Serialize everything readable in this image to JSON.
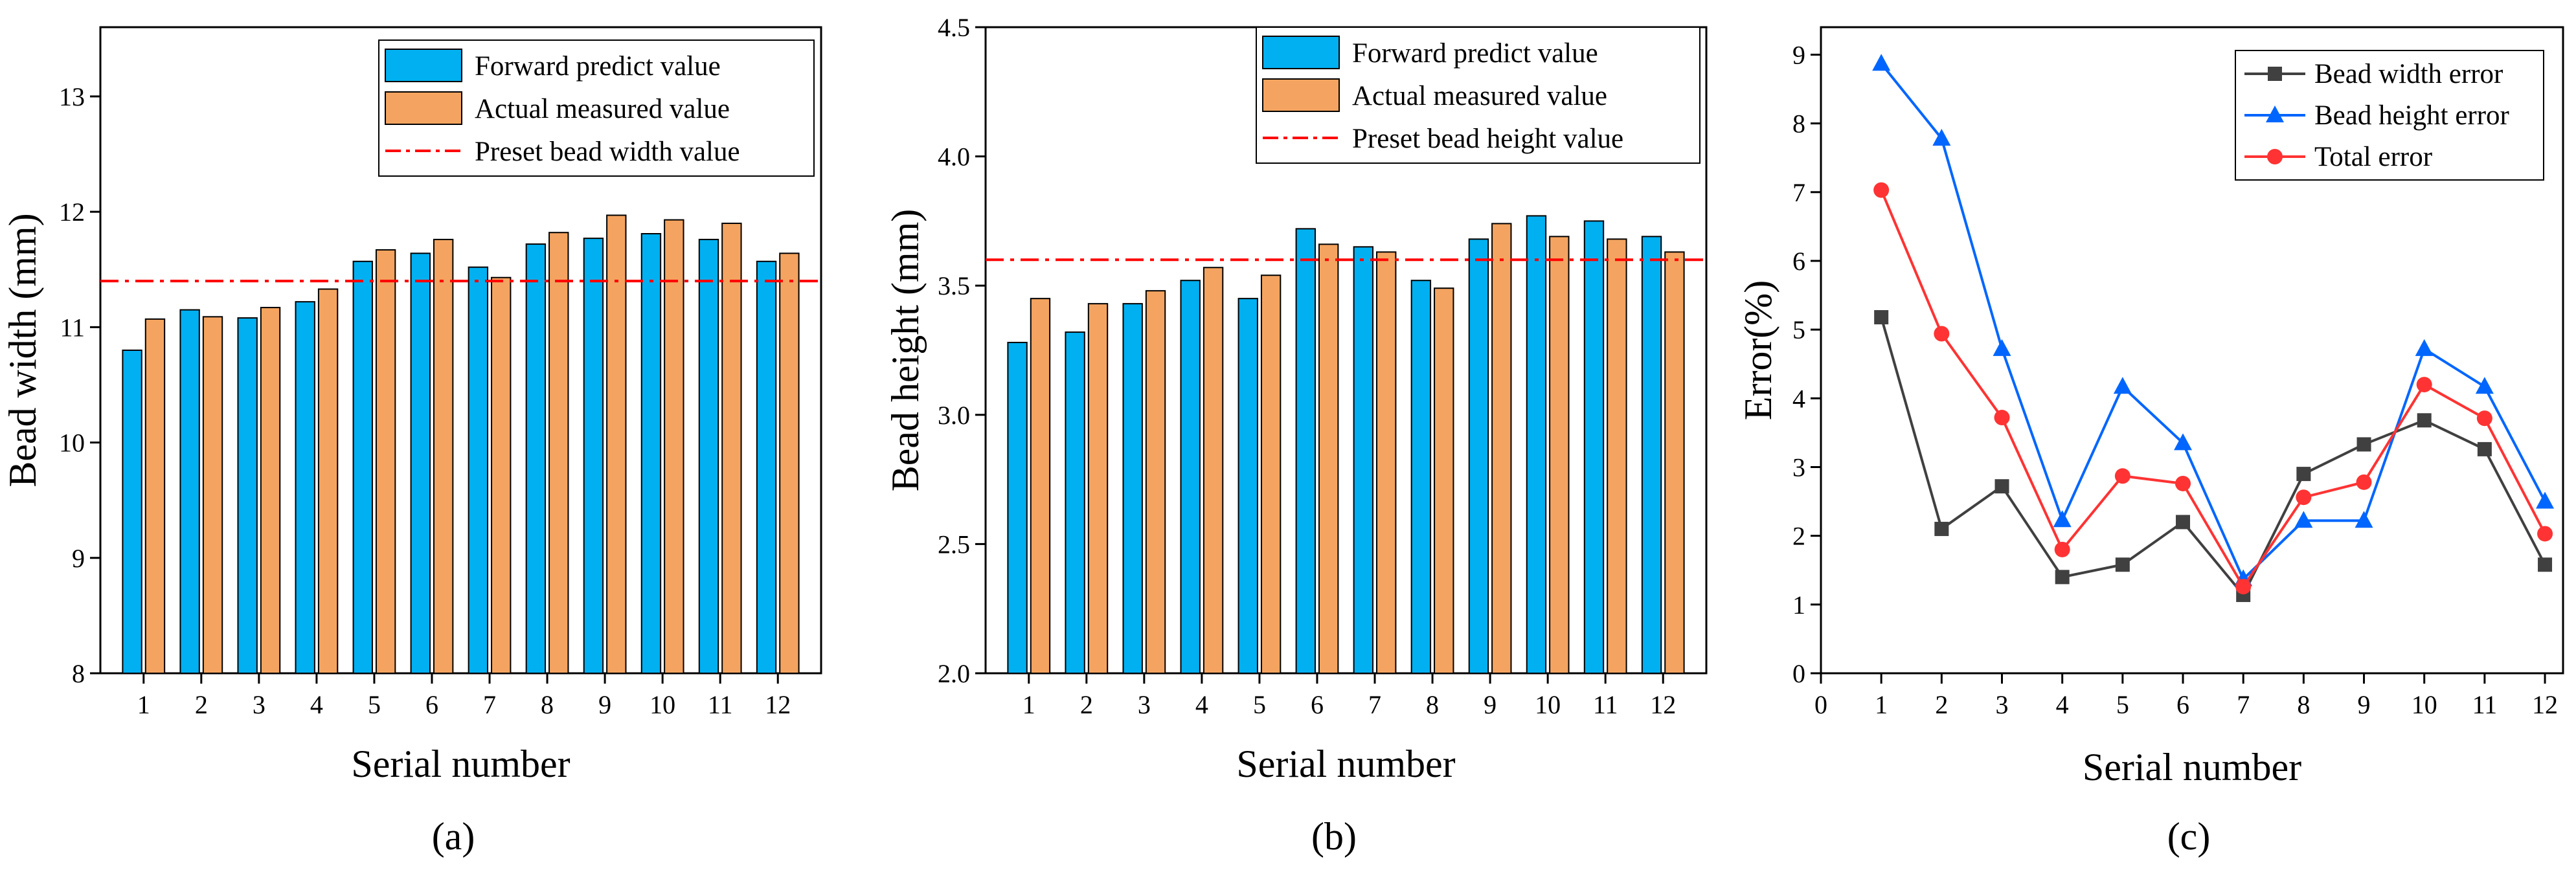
{
  "chart_data": [
    {
      "type": "bar",
      "panel_label": "(a)",
      "categories": [
        "1",
        "2",
        "3",
        "4",
        "5",
        "6",
        "7",
        "8",
        "9",
        "10",
        "11",
        "12"
      ],
      "series": [
        {
          "name": "Forward predict value",
          "color": "#00B0F0",
          "values": [
            10.8,
            11.15,
            11.08,
            11.22,
            11.57,
            11.64,
            11.52,
            11.72,
            11.77,
            11.81,
            11.76,
            11.57
          ]
        },
        {
          "name": "Actual measured value",
          "color": "#F4A460",
          "values": [
            11.07,
            11.09,
            11.17,
            11.33,
            11.67,
            11.76,
            11.43,
            11.82,
            11.97,
            11.93,
            11.9,
            11.64
          ]
        }
      ],
      "reference_line": {
        "name": "Preset bead width value",
        "value": 11.4,
        "color": "#FF0000"
      },
      "xlabel": "Serial number",
      "ylabel": "Bead width (mm)",
      "ylim": [
        8,
        13.6
      ],
      "yticks": [
        "8",
        "9",
        "10",
        "11",
        "12",
        "13"
      ],
      "legend": "top-right"
    },
    {
      "type": "bar",
      "panel_label": "(b)",
      "categories": [
        "1",
        "2",
        "3",
        "4",
        "5",
        "6",
        "7",
        "8",
        "9",
        "10",
        "11",
        "12"
      ],
      "series": [
        {
          "name": "Forward predict value",
          "color": "#00B0F0",
          "values": [
            3.28,
            3.32,
            3.43,
            3.52,
            3.45,
            3.72,
            3.65,
            3.52,
            3.68,
            3.77,
            3.75,
            3.69
          ]
        },
        {
          "name": "Actual measured value",
          "color": "#F4A460",
          "values": [
            3.45,
            3.43,
            3.48,
            3.57,
            3.54,
            3.66,
            3.63,
            3.49,
            3.74,
            3.69,
            3.68,
            3.63
          ]
        }
      ],
      "reference_line": {
        "name": "Preset bead height value",
        "value": 3.6,
        "color": "#FF0000"
      },
      "xlabel": "Serial number",
      "ylabel": "Bead height (mm)",
      "ylim": [
        2.0,
        4.5
      ],
      "yticks": [
        "2.0",
        "2.5",
        "3.0",
        "3.5",
        "4.0",
        "4.5"
      ],
      "legend": "top-right"
    },
    {
      "type": "line",
      "panel_label": "(c)",
      "x": [
        1,
        2,
        3,
        4,
        5,
        6,
        7,
        8,
        9,
        10,
        11,
        12
      ],
      "series": [
        {
          "name": "Bead width error",
          "color": "#404040",
          "marker": "square",
          "values": [
            5.18,
            2.1,
            2.72,
            1.4,
            1.58,
            2.2,
            1.14,
            2.9,
            3.33,
            3.68,
            3.26,
            1.58
          ]
        },
        {
          "name": "Bead height error",
          "color": "#0066FF",
          "marker": "triangle",
          "values": [
            8.87,
            7.78,
            4.72,
            2.23,
            4.17,
            3.35,
            1.37,
            2.22,
            2.22,
            4.72,
            4.17,
            2.5
          ]
        },
        {
          "name": "Total error",
          "color": "#FF3333",
          "marker": "circle",
          "values": [
            7.03,
            4.94,
            3.72,
            1.8,
            2.87,
            2.76,
            1.26,
            2.56,
            2.78,
            4.2,
            3.71,
            2.03
          ]
        }
      ],
      "xlabel": "Serial number",
      "ylabel": "Error(%)",
      "xlim": [
        0,
        12.3
      ],
      "ylim": [
        0,
        9.4
      ],
      "xticks": [
        "0",
        "1",
        "2",
        "3",
        "4",
        "5",
        "6",
        "7",
        "8",
        "9",
        "10",
        "11",
        "12"
      ],
      "yticks": [
        "0",
        "1",
        "2",
        "3",
        "4",
        "5",
        "6",
        "7",
        "8",
        "9"
      ],
      "legend": "top-right"
    }
  ]
}
